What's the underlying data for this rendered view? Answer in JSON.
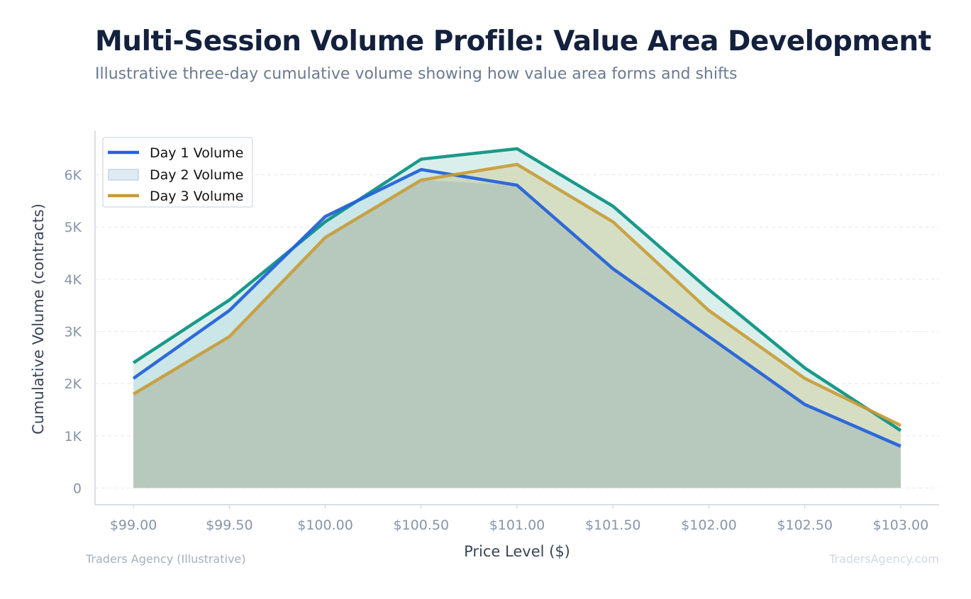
{
  "title": "Multi-Session Volume Profile: Value Area Development",
  "subtitle": "Illustrative three-day cumulative volume showing how value area forms and shifts",
  "footer": {
    "source": "Traders Agency (Illustrative)",
    "watermark": "TradersAgency.com"
  },
  "colors": {
    "day1": "#2563d9",
    "day2_line": "#0f9484",
    "day2_fill": "#e0eaf3",
    "day3": "#c89b35",
    "axis": "#cdd3dc",
    "grid": "#e3e8ee",
    "tick_text": "#8795a8"
  },
  "chart_data": {
    "type": "area",
    "xlabel": "Price Level ($)",
    "ylabel": "Cumulative Volume (contracts)",
    "x": [
      99.0,
      99.5,
      100.0,
      100.5,
      101.0,
      101.5,
      102.0,
      102.5,
      103.0
    ],
    "x_tick_labels": [
      "$99.00",
      "$99.50",
      "$100.00",
      "$100.50",
      "$101.00",
      "$101.50",
      "$102.00",
      "$102.50",
      "$103.00"
    ],
    "y_ticks": [
      0,
      1000,
      2000,
      3000,
      4000,
      5000,
      6000
    ],
    "y_tick_labels": [
      "0",
      "1K",
      "2K",
      "3K",
      "4K",
      "5K",
      "6K"
    ],
    "xlim": [
      98.8,
      103.2
    ],
    "ylim": [
      -320,
      6850
    ],
    "grid": "horizontal dashed",
    "legend_position": "top-left",
    "series": [
      {
        "name": "Day 1 Volume",
        "key": "day1",
        "style": "line-fill",
        "values": [
          2100,
          3400,
          5200,
          6100,
          5800,
          4200,
          2900,
          1600,
          800
        ]
      },
      {
        "name": "Day 2 Volume",
        "key": "day2",
        "style": "area",
        "values": [
          2400,
          3600,
          5100,
          6300,
          6500,
          5400,
          3800,
          2300,
          1100
        ]
      },
      {
        "name": "Day 3 Volume",
        "key": "day3",
        "style": "line-fill",
        "values": [
          1800,
          2900,
          4800,
          5900,
          6200,
          5100,
          3400,
          2100,
          1200
        ]
      }
    ]
  }
}
